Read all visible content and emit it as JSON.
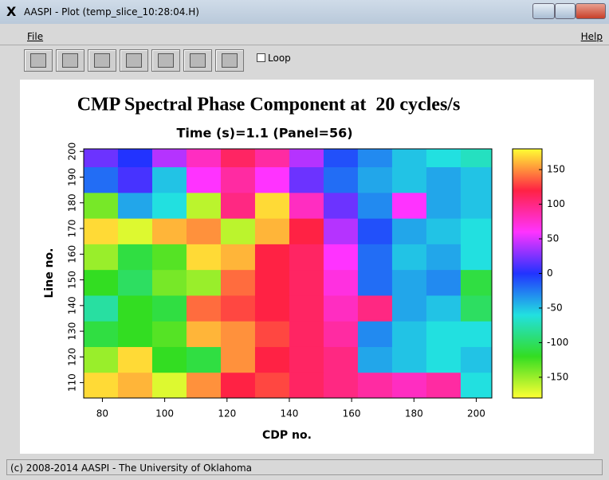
{
  "window": {
    "title": "AASPI - Plot (temp_slice_10:28:04.H)"
  },
  "menu": [
    "File",
    "Help"
  ],
  "toolbar": {
    "loop": "Loop"
  },
  "status": "(c) 2008-2014 AASPI - The University of Oklahoma",
  "chart_data": {
    "type": "heatmap",
    "title": "CMP Spectral Phase Component at  20 cycles/s",
    "subtitle": "Time (s)=1.1 (Panel=56)",
    "x_label": "CDP no.",
    "y_label": "Line no.",
    "xbins": [
      74,
      85,
      96,
      107,
      118,
      129,
      140,
      151,
      162,
      173,
      184,
      195,
      205
    ],
    "ybins": [
      104,
      114,
      124,
      134,
      144,
      154,
      164,
      174,
      184,
      194,
      201
    ],
    "z": [
      [
        170,
        160,
        -170,
        150,
        120,
        130,
        110,
        100,
        90,
        80,
        90,
        -60
      ],
      [
        -150,
        170,
        -120,
        -110,
        150,
        120,
        110,
        100,
        -40,
        -50,
        -60,
        -50
      ],
      [
        -110,
        -120,
        -130,
        160,
        150,
        130,
        110,
        90,
        -30,
        -50,
        -60,
        -60
      ],
      [
        -80,
        -120,
        -110,
        140,
        130,
        120,
        110,
        80,
        100,
        -40,
        -50,
        -100
      ],
      [
        -120,
        -100,
        -140,
        -150,
        140,
        120,
        110,
        70,
        -20,
        -40,
        -30,
        -110
      ],
      [
        -150,
        -110,
        -130,
        170,
        160,
        120,
        110,
        60,
        -20,
        -50,
        -40,
        -60
      ],
      [
        170,
        -170,
        160,
        150,
        -160,
        160,
        120,
        40,
        -10,
        -40,
        -50,
        -60
      ],
      [
        -140,
        -40,
        -60,
        -160,
        100,
        170,
        80,
        20,
        -30,
        60,
        -40,
        -50
      ],
      [
        -20,
        10,
        -50,
        60,
        90,
        60,
        20,
        -20,
        -40,
        -50,
        -40,
        -50
      ],
      [
        20,
        0,
        40,
        80,
        110,
        90,
        40,
        -10,
        -30,
        -50,
        -60,
        -70
      ]
    ],
    "xlim": [
      74,
      205
    ],
    "xticks": [
      80,
      100,
      120,
      140,
      160,
      180,
      200
    ],
    "ylim": [
      104,
      201
    ],
    "yticks": [
      110,
      120,
      130,
      140,
      150,
      160,
      170,
      180,
      190,
      200
    ],
    "zlim": [
      -180,
      180
    ],
    "zticks": [
      -150,
      -100,
      -50,
      0,
      50,
      100,
      150
    ],
    "colorscale": [
      "#ffff33",
      "#33dd22",
      "#22e0e0",
      "#2233ff",
      "#ff33ff",
      "#ff2244",
      "#ffff33"
    ]
  }
}
